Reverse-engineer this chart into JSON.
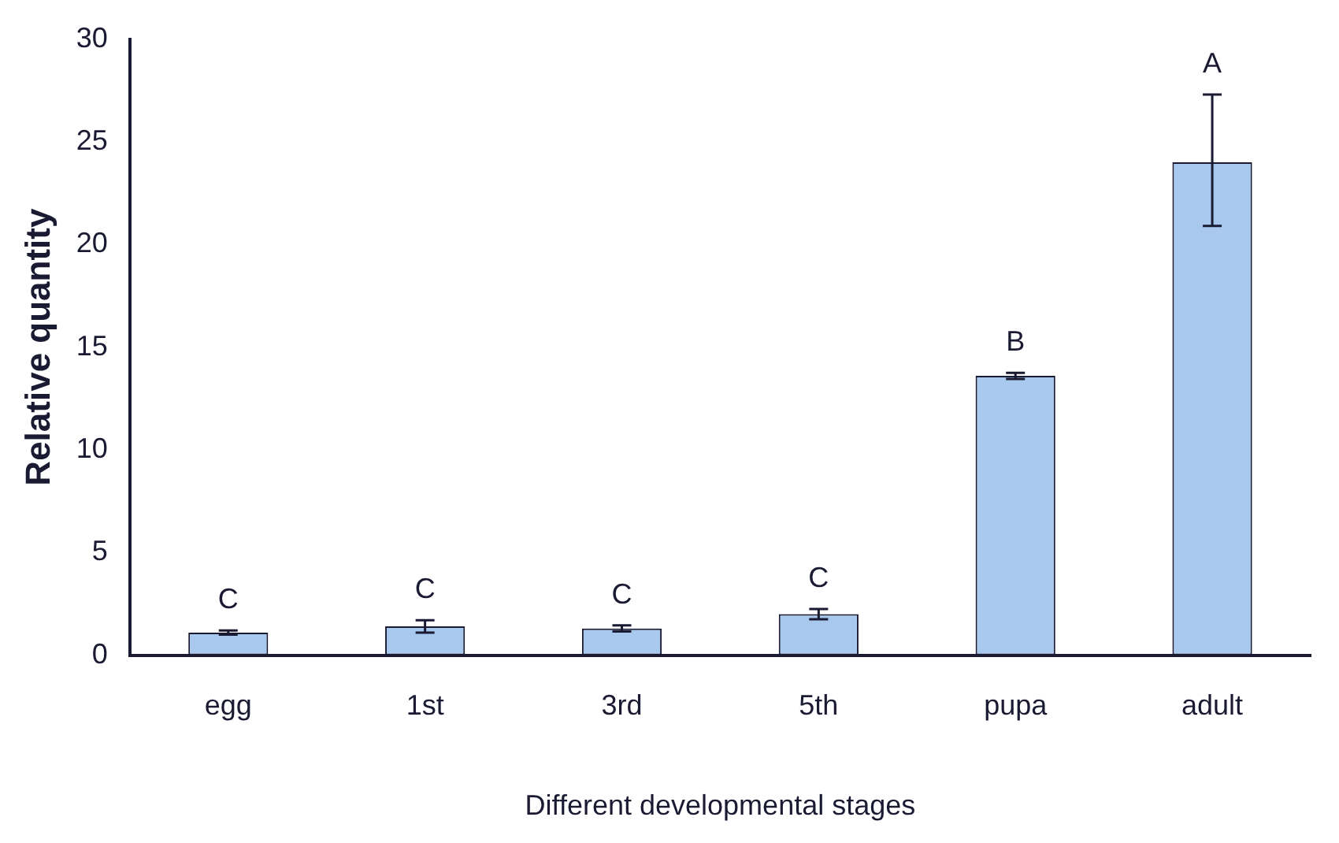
{
  "chart_data": {
    "type": "bar",
    "xlabel": "Different developmental stages",
    "ylabel": "Relative quantity",
    "categories": [
      "egg",
      "1st",
      "3rd",
      "5th",
      "pupa",
      "adult"
    ],
    "values": [
      1.1,
      1.4,
      1.3,
      2.0,
      13.6,
      24.0
    ],
    "errors": [
      0.1,
      0.3,
      0.15,
      0.25,
      0.15,
      [
        20.9,
        27.3
      ]
    ],
    "color": "#a8c8ee",
    "ylim": [
      0,
      30
    ],
    "yticks": [
      0,
      5,
      10,
      15,
      20,
      25,
      30
    ],
    "grid": false,
    "legend": false,
    "annotations": [
      {
        "text": "C",
        "x": "egg",
        "y": 1.2
      },
      {
        "text": "C",
        "x": "1st",
        "y": 1.7
      },
      {
        "text": "C",
        "x": "3rd",
        "y": 1.45
      },
      {
        "text": "C",
        "x": "5th",
        "y": 2.25
      },
      {
        "text": "B",
        "x": "pupa",
        "y": 13.75
      },
      {
        "text": "A",
        "x": "adult",
        "y": 27.3
      }
    ]
  }
}
